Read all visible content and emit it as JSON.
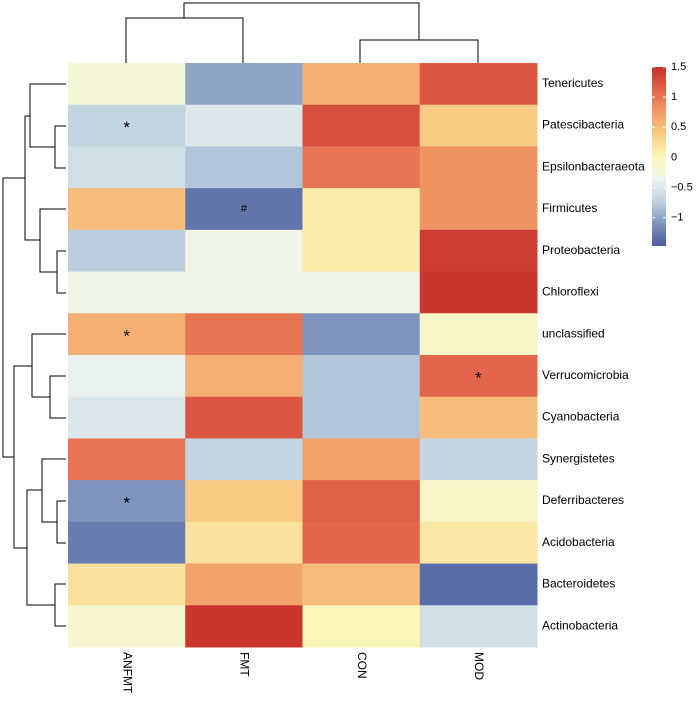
{
  "chart_data": {
    "type": "heatmap",
    "columns": [
      "ANFMT",
      "FMT",
      "CON",
      "MOD"
    ],
    "rows": [
      "Tenericutes",
      "Patescibacteria",
      "Epsilonbacteraeota",
      "Firmicutes",
      "Proteobacteria",
      "Chloroflexi",
      "unclassified",
      "Verrucomicrobia",
      "Cyanobacteria",
      "Synergistetes",
      "Deferribacteres",
      "Acidobacteria",
      "Bacteroidetes",
      "Actinobacteria"
    ],
    "values": [
      [
        -0.2,
        -1.0,
        0.6,
        1.2
      ],
      [
        -0.7,
        -0.5,
        1.25,
        0.4
      ],
      [
        -0.6,
        -0.8,
        1.0,
        0.8
      ],
      [
        0.5,
        -1.3,
        0.1,
        0.8
      ],
      [
        -0.75,
        -0.3,
        0.1,
        1.4
      ],
      [
        -0.3,
        -0.3,
        -0.3,
        1.45
      ],
      [
        0.6,
        1.0,
        -1.1,
        -0.1
      ],
      [
        -0.4,
        0.6,
        -0.8,
        1.1
      ],
      [
        -0.5,
        1.2,
        -0.8,
        0.5
      ],
      [
        1.0,
        -0.7,
        0.7,
        -0.7
      ],
      [
        -1.1,
        0.4,
        1.15,
        -0.1
      ],
      [
        -1.25,
        0.2,
        1.1,
        0.15
      ],
      [
        0.2,
        0.7,
        0.5,
        -1.35
      ],
      [
        -0.15,
        1.45,
        0.0,
        -0.6
      ]
    ],
    "cell_labels": [
      [
        null,
        null,
        null,
        null
      ],
      [
        "*",
        null,
        null,
        null
      ],
      [
        null,
        null,
        null,
        null
      ],
      [
        null,
        "#",
        null,
        null
      ],
      [
        null,
        null,
        null,
        null
      ],
      [
        null,
        null,
        null,
        null
      ],
      [
        "*",
        null,
        null,
        null
      ],
      [
        null,
        null,
        null,
        "*"
      ],
      [
        null,
        null,
        null,
        null
      ],
      [
        null,
        null,
        null,
        null
      ],
      [
        "*",
        null,
        null,
        null
      ],
      [
        null,
        null,
        null,
        null
      ],
      [
        null,
        null,
        null,
        null
      ],
      [
        null,
        null,
        null,
        null
      ]
    ],
    "zlim": [
      -1.47,
      1.5
    ],
    "zticks": [
      {
        "value": -1,
        "label": "−1"
      },
      {
        "value": -0.5,
        "label": "−0.5"
      },
      0,
      0.5,
      1,
      1.5
    ],
    "colors": [
      "#4a5b9c",
      "#7e94bd",
      "#c0d2e0",
      "#eef4ef",
      "#fbf6b6",
      "#f8cd86",
      "#f19a66",
      "#e2624a",
      "#c42f2a"
    ]
  }
}
